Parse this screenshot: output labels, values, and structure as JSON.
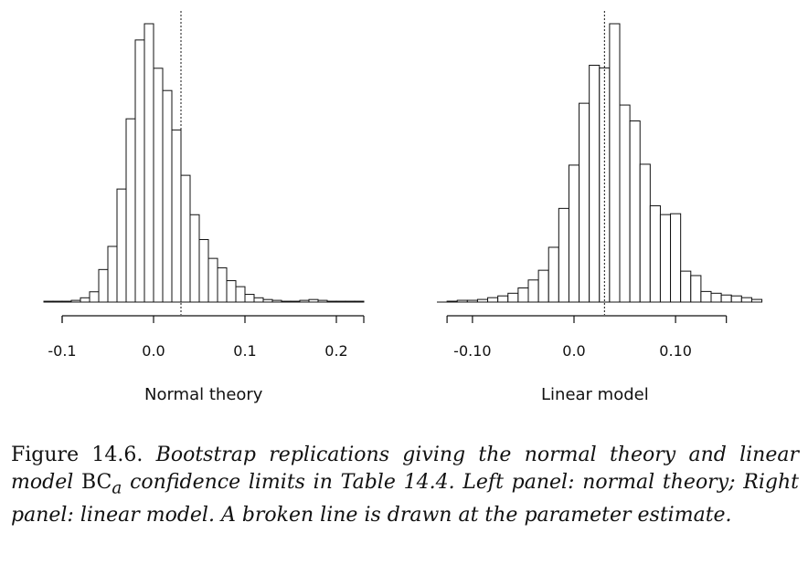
{
  "chart_data": [
    {
      "type": "bar",
      "panel": "left",
      "xlabel": "Normal theory",
      "xlim": [
        -0.12,
        0.23
      ],
      "axis_range": [
        -0.1,
        0.23
      ],
      "ticks": [
        -0.1,
        0.0,
        0.1,
        0.2
      ],
      "tick_labels": [
        "-0.1",
        "0.0",
        "0.1",
        "0.2"
      ],
      "bin_start": -0.12,
      "bin_width": 0.01,
      "values": [
        1,
        1,
        1,
        2,
        5,
        12,
        38,
        65,
        132,
        214,
        306,
        325,
        273,
        247,
        201,
        148,
        102,
        73,
        51,
        40,
        25,
        18,
        9,
        5,
        3,
        2,
        1,
        1,
        2,
        3,
        2,
        1,
        1,
        1,
        1
      ],
      "reference_line": 0.03
    },
    {
      "type": "bar",
      "panel": "right",
      "xlabel": "Linear model",
      "xlim": [
        -0.135,
        0.18
      ],
      "axis_range": [
        -0.125,
        0.15
      ],
      "ticks": [
        -0.1,
        0.0,
        0.1
      ],
      "tick_labels": [
        "-0.10",
        "0.0",
        "0.10"
      ],
      "bin_start": -0.125,
      "bin_width": 0.01,
      "values": [
        1,
        2,
        2,
        3,
        5,
        7,
        10,
        16,
        25,
        36,
        62,
        106,
        155,
        225,
        268,
        265,
        315,
        223,
        205,
        156,
        109,
        99,
        100,
        35,
        30,
        12,
        10,
        8,
        7,
        5,
        3
      ],
      "reference_line": 0.03
    }
  ],
  "caption": {
    "label": "Figure 14.6.",
    "text_1": "Bootstrap replications giving the normal theory and linear model ",
    "bca_main": "BC",
    "bca_sub": "a",
    "text_2": " confidence limits in Table 14.4. Left panel: normal theory; Right panel: linear model. A broken line is drawn at the parameter estimate."
  }
}
